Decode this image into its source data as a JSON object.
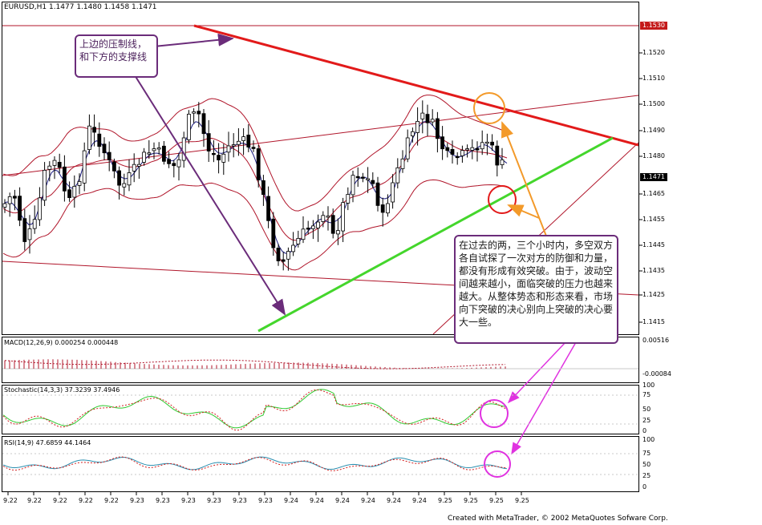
{
  "chart_title": "EURUSD,H1  1.1477 1.1480 1.1458 1.1471",
  "price_scale": [
    "1.1520",
    "1.1510",
    "1.1500",
    "1.1490",
    "1.1480",
    "1.1465",
    "1.1455",
    "1.1445",
    "1.1435",
    "1.1425",
    "1.1415"
  ],
  "price_tags": {
    "top_line": "1.1530",
    "current": "1.1471"
  },
  "macd": {
    "label": "MACD(12,26,9)  0.000254  0.000448",
    "scale_top": "0.00516",
    "scale_bottom": "-0.00084"
  },
  "stochastic": {
    "label": "Stochastic(14,3,3)  37.3239  37.4946",
    "scale": [
      "100",
      "75",
      "50",
      "25",
      "0"
    ]
  },
  "rsi": {
    "label": "RSI(14,9)  47.6859  44.1464",
    "scale": [
      "100",
      "75",
      "50",
      "25",
      "0"
    ]
  },
  "time_axis": [
    "9.22",
    "9.22",
    "9.22",
    "9.22",
    "9.22",
    "9.23",
    "9.23",
    "9.23",
    "9.23",
    "9.23",
    "9.23",
    "9.24",
    "9.24",
    "9.24",
    "9.24",
    "9.24",
    "9.24",
    "9.25",
    "9.25",
    "9.25",
    "9.25"
  ],
  "annotations": {
    "top_note": "上边的压制线，和下方的支撑线",
    "right_note": "在过去的两，三个小时内，多空双方各自试探了一次对方的防御和力量，都没有形成有效突破。由于，波动空间越来越小，面临突破的压力也越来越大。从整体势态和形态来看，市场向下突破的决心别向上突破的决心要大一些。"
  },
  "credit": "Created with MetaTrader, © 2002 MetaQuotes Sofware Corp.",
  "colors": {
    "resistance": "#e21a1a",
    "support": "#44d62c",
    "bands": "#b0152a",
    "annotation_purple": "#6b2c7a",
    "arrow_orange": "#f39a2a",
    "arrow_magenta": "#e032e0"
  },
  "chart_data": [
    {
      "type": "candlestick",
      "title": "EURUSD,H1",
      "last_bar": {
        "open": 1.1477,
        "high": 1.148,
        "low": 1.1458,
        "close": 1.1471
      },
      "ylim": [
        1.141,
        1.1532
      ],
      "horizontal_line": 1.153
    },
    {
      "type": "bar",
      "title": "MACD(12,26,9)",
      "values": [
        0.000254,
        0.000448
      ],
      "ylim": [
        -0.00084,
        0.00516
      ]
    },
    {
      "type": "line",
      "title": "Stochastic(14,3,3)",
      "series": [
        {
          "name": "main",
          "last": 37.3239
        },
        {
          "name": "signal",
          "last": 37.4946
        }
      ],
      "ylim": [
        0,
        100
      ]
    },
    {
      "type": "line",
      "title": "RSI(14,9)",
      "series": [
        {
          "name": "rsi",
          "last": 47.6859
        },
        {
          "name": "signal",
          "last": 44.1464
        }
      ],
      "ylim": [
        0,
        100
      ]
    }
  ]
}
